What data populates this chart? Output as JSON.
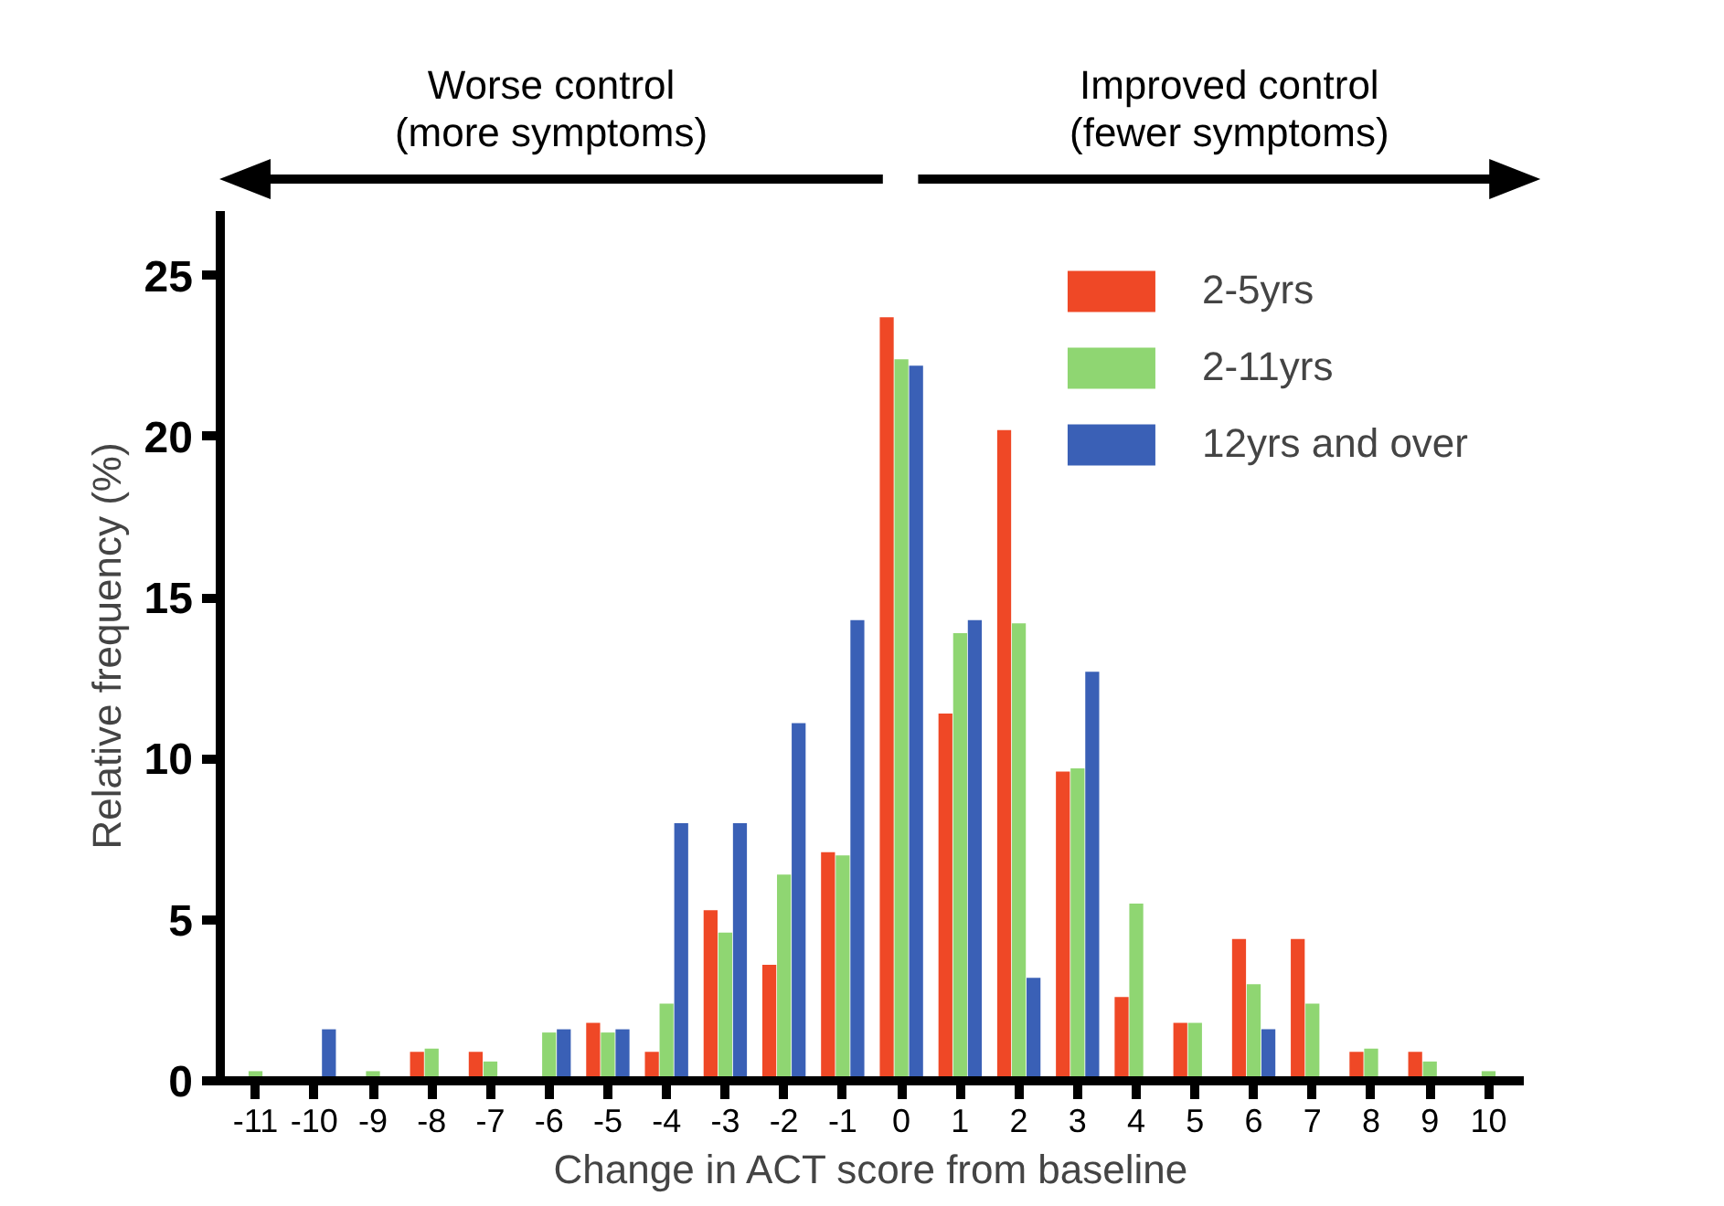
{
  "chart_data": {
    "type": "bar",
    "xlabel": "Change in ACT score from baseline",
    "ylabel": "Relative frequency (%)",
    "categories": [
      "-11",
      "-10",
      "-9",
      "-8",
      "-7",
      "-6",
      "-5",
      "-4",
      "-3",
      "-2",
      "-1",
      "0",
      "1",
      "2",
      "3",
      "4",
      "5",
      "6",
      "7",
      "8",
      "9",
      "10"
    ],
    "series": [
      {
        "name": "2-5yrs",
        "color": "#ef4826",
        "values": [
          0,
          0,
          0,
          0.9,
          0.9,
          0,
          1.8,
          0.9,
          5.3,
          3.6,
          7.1,
          23.7,
          11.4,
          20.2,
          9.6,
          2.6,
          1.8,
          4.4,
          4.4,
          0.9,
          0.9,
          0
        ]
      },
      {
        "name": "2-11yrs",
        "color": "#8fd672",
        "values": [
          0.3,
          0,
          0.3,
          1.0,
          0.6,
          1.5,
          1.5,
          2.4,
          4.6,
          6.4,
          7.0,
          22.4,
          13.9,
          14.2,
          9.7,
          5.5,
          1.8,
          3.0,
          2.4,
          1.0,
          0.6,
          0.3
        ]
      },
      {
        "name": "12yrs and over",
        "color": "#3a60b6",
        "values": [
          0,
          1.6,
          0,
          0,
          0,
          1.6,
          1.6,
          8.0,
          8.0,
          11.1,
          14.3,
          22.2,
          14.3,
          3.2,
          12.7,
          0,
          0,
          1.6,
          0,
          0,
          0,
          0
        ]
      }
    ],
    "ylim": [
      0,
      27
    ],
    "yticks": [
      0,
      5,
      10,
      15,
      20,
      25
    ],
    "grid": false,
    "legend": "top right",
    "annotations": [
      "Worse control\n(more symptoms)",
      "Improved control\n(fewer symptoms)"
    ]
  }
}
